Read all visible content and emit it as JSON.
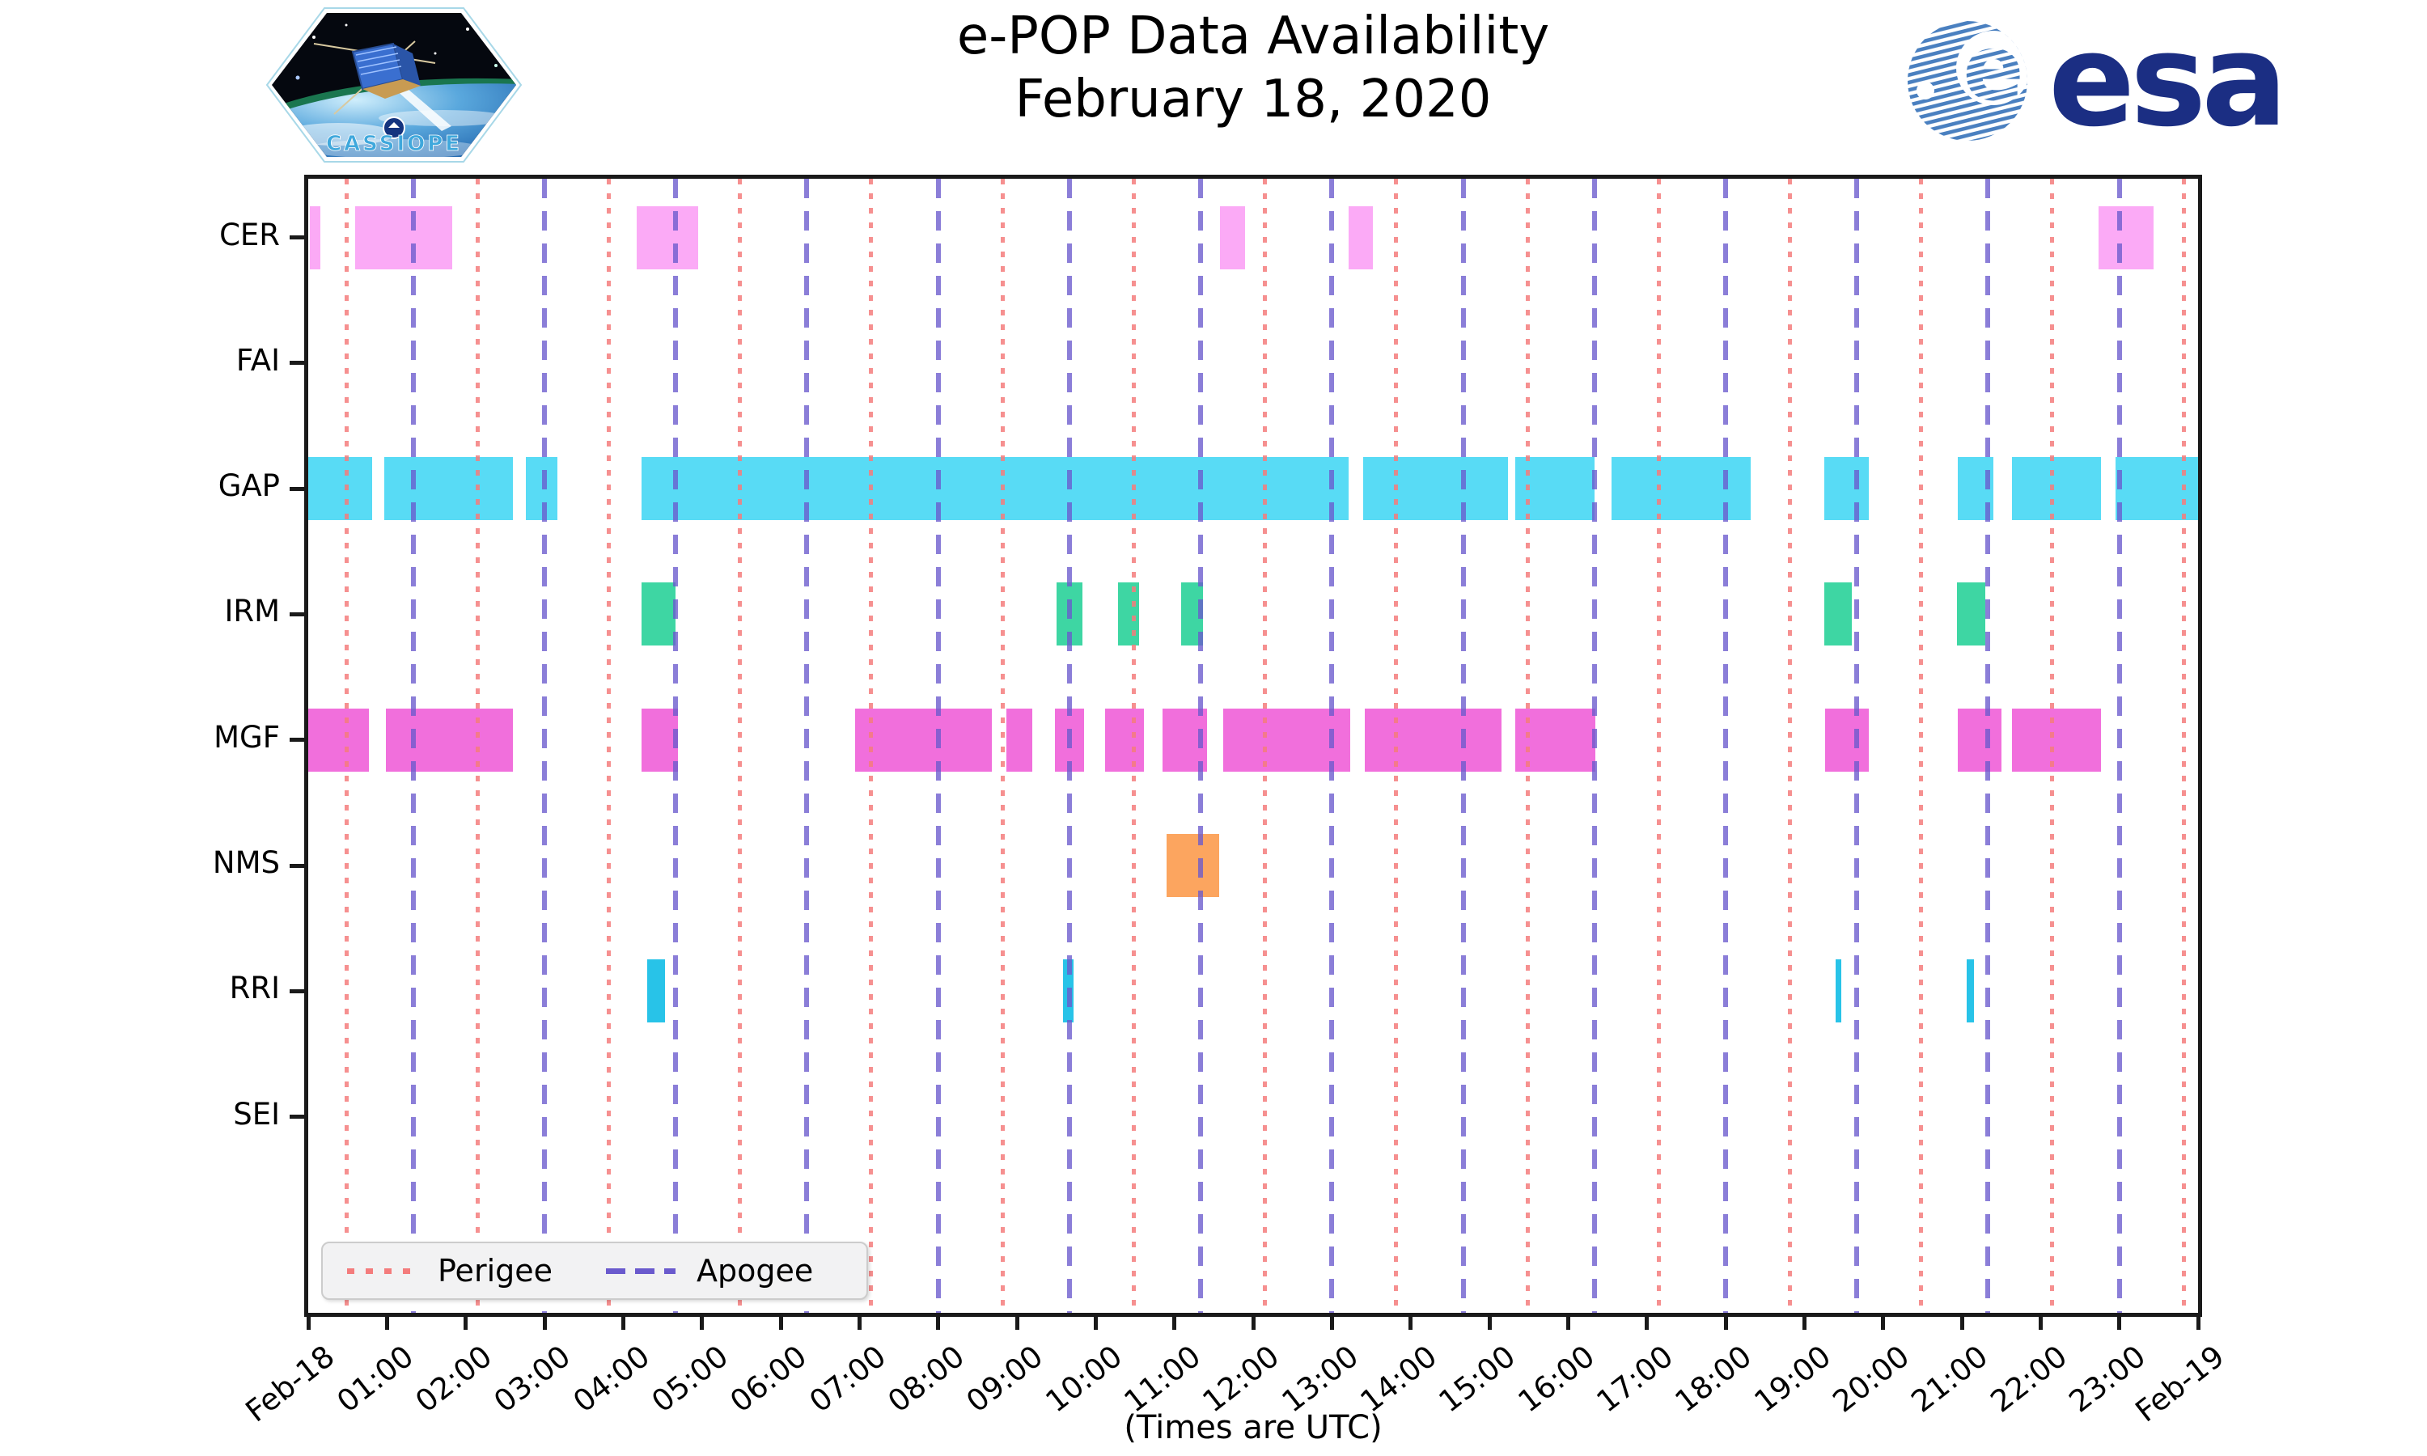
{
  "header": {
    "title_line1": "e-POP Data Availability",
    "title_line2": "February 18, 2020"
  },
  "logos": {
    "cassiope_text": "CASSIOPE",
    "esa_text": "esa"
  },
  "chart_data": {
    "type": "gantt-availability-timeline",
    "title": "e-POP Data Availability",
    "subtitle": "February 18, 2020",
    "xlabel": "(Times are UTC)",
    "x_range_hours": [
      0,
      24
    ],
    "x_tick_labels": [
      "Feb-18",
      "01:00",
      "02:00",
      "03:00",
      "04:00",
      "05:00",
      "06:00",
      "07:00",
      "08:00",
      "09:00",
      "10:00",
      "11:00",
      "12:00",
      "13:00",
      "14:00",
      "15:00",
      "16:00",
      "17:00",
      "18:00",
      "19:00",
      "20:00",
      "21:00",
      "22:00",
      "23:00",
      "Feb-19"
    ],
    "y_categories": [
      "CER",
      "FAI",
      "GAP",
      "IRM",
      "MGF",
      "NMS",
      "RRI",
      "SEI"
    ],
    "legend": {
      "position": "lower-left",
      "entries": [
        {
          "label": "Perigee",
          "style": "dotted",
          "color": "#f47c7c"
        },
        {
          "label": "Apogee",
          "style": "dashed",
          "color": "#6a5acd"
        }
      ]
    },
    "perigee_times_utc": [
      "00:29",
      "02:09",
      "03:49",
      "05:29",
      "07:09",
      "08:49",
      "10:29",
      "12:09",
      "13:49",
      "15:29",
      "17:09",
      "18:49",
      "20:29",
      "22:09",
      "23:49"
    ],
    "apogee_times_utc": [
      "01:20",
      "03:00",
      "04:40",
      "06:20",
      "08:00",
      "09:40",
      "11:20",
      "13:00",
      "14:40",
      "16:20",
      "18:00",
      "19:40",
      "21:20",
      "23:00"
    ],
    "series": [
      {
        "name": "CER",
        "color": "#fbaaf6",
        "intervals": [
          [
            "00:01",
            "00:09"
          ],
          [
            "00:36",
            "01:50"
          ],
          [
            "04:10",
            "04:57"
          ],
          [
            "11:35",
            "11:54"
          ],
          [
            "13:13",
            "13:31"
          ],
          [
            "22:44",
            "23:26"
          ]
        ]
      },
      {
        "name": "FAI",
        "color": "#f9d16a",
        "intervals": []
      },
      {
        "name": "GAP",
        "color": "#58dbf5",
        "intervals": [
          [
            "00:00",
            "00:49"
          ],
          [
            "00:58",
            "02:36"
          ],
          [
            "02:46",
            "03:10"
          ],
          [
            "04:14",
            "13:13"
          ],
          [
            "13:24",
            "15:14"
          ],
          [
            "15:20",
            "16:20"
          ],
          [
            "16:33",
            "18:19"
          ],
          [
            "19:15",
            "19:49"
          ],
          [
            "20:57",
            "21:24"
          ],
          [
            "21:38",
            "22:46"
          ],
          [
            "22:57",
            "24:00"
          ]
        ]
      },
      {
        "name": "IRM",
        "color": "#3ed6a3",
        "intervals": [
          [
            "04:14",
            "04:40"
          ],
          [
            "09:30",
            "09:50"
          ],
          [
            "10:17",
            "10:33"
          ],
          [
            "11:05",
            "11:22"
          ],
          [
            "19:15",
            "19:36"
          ],
          [
            "20:56",
            "21:18"
          ]
        ]
      },
      {
        "name": "MGF",
        "color": "#f16fdc",
        "intervals": [
          [
            "00:00",
            "00:46"
          ],
          [
            "00:59",
            "02:36"
          ],
          [
            "04:14",
            "04:42"
          ],
          [
            "06:57",
            "08:41"
          ],
          [
            "08:52",
            "09:12"
          ],
          [
            "09:29",
            "09:51"
          ],
          [
            "10:07",
            "10:37"
          ],
          [
            "10:51",
            "11:25"
          ],
          [
            "11:37",
            "13:14"
          ],
          [
            "13:25",
            "15:09"
          ],
          [
            "15:20",
            "16:21"
          ],
          [
            "19:16",
            "19:49"
          ],
          [
            "20:57",
            "21:30"
          ],
          [
            "21:38",
            "22:46"
          ]
        ]
      },
      {
        "name": "NMS",
        "color": "#fca55f",
        "intervals": [
          [
            "10:54",
            "11:34"
          ]
        ]
      },
      {
        "name": "RRI",
        "color": "#28c3e8",
        "intervals": [
          [
            "04:18",
            "04:32"
          ],
          [
            "09:35",
            "09:43"
          ],
          [
            "19:24",
            "19:28"
          ],
          [
            "21:04",
            "21:09"
          ]
        ]
      },
      {
        "name": "SEI",
        "color": "#b0b0b0",
        "intervals": []
      }
    ]
  }
}
